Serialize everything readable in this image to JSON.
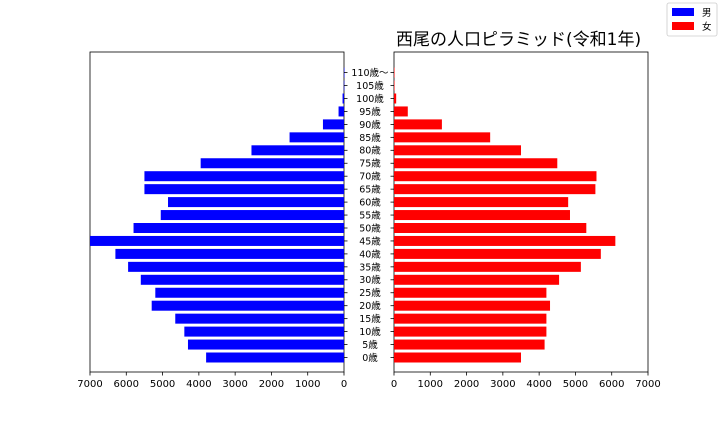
{
  "chart_data": {
    "type": "bar",
    "orientation": "horizontal",
    "layout": "population-pyramid",
    "title": "西尾の人口ピラミッド(令和1年)",
    "categories": [
      "0歳",
      "5歳",
      "10歳",
      "15歳",
      "20歳",
      "25歳",
      "30歳",
      "35歳",
      "40歳",
      "45歳",
      "50歳",
      "55歳",
      "60歳",
      "65歳",
      "70歳",
      "75歳",
      "80歳",
      "85歳",
      "90歳",
      "95歳",
      "100歳",
      "105歳",
      "110歳〜"
    ],
    "series": [
      {
        "name": "男",
        "color": "#0000ff",
        "side": "left",
        "values": [
          3800,
          4300,
          4400,
          4650,
          5300,
          5200,
          5600,
          5950,
          6300,
          7000,
          5800,
          5050,
          4850,
          5500,
          5500,
          3950,
          2550,
          1500,
          580,
          150,
          40,
          5,
          2
        ]
      },
      {
        "name": "女",
        "color": "#ff0000",
        "side": "right",
        "values": [
          3500,
          4150,
          4200,
          4200,
          4300,
          4200,
          4550,
          5150,
          5700,
          6100,
          5300,
          4850,
          4800,
          5550,
          5580,
          4500,
          3500,
          2650,
          1320,
          380,
          60,
          8,
          2
        ]
      }
    ],
    "left_axis": {
      "xlim": [
        7000,
        0
      ],
      "ticks": [
        "7000",
        "6000",
        "5000",
        "4000",
        "3000",
        "2000",
        "1000",
        "0"
      ]
    },
    "right_axis": {
      "xlim": [
        0,
        7000
      ],
      "ticks": [
        "0",
        "1000",
        "2000",
        "3000",
        "4000",
        "5000",
        "6000",
        "7000"
      ]
    },
    "grid": false,
    "legend_position": "top-right"
  }
}
